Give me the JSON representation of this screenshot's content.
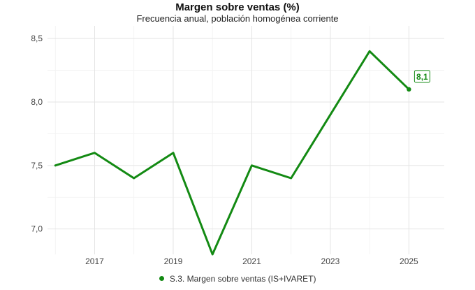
{
  "chart_data": {
    "type": "line",
    "title": "Margen sobre ventas (%)",
    "subtitle": "Frecuencia anual, población homogénea corriente",
    "xlabel": "",
    "ylabel": "",
    "x": [
      2016,
      2017,
      2018,
      2019,
      2020,
      2021,
      2022,
      2023,
      2024,
      2025
    ],
    "x_tick_labels": [
      "2017",
      "2019",
      "2021",
      "2023",
      "2025"
    ],
    "y_ticks": [
      7.0,
      7.5,
      8.0,
      8.5
    ],
    "y_tick_labels": [
      "7,0",
      "7,5",
      "8,0",
      "8,5"
    ],
    "ylim": [
      6.8,
      8.6
    ],
    "xlim": [
      2015.8,
      2025.9
    ],
    "grid": true,
    "legend_position": "bottom",
    "series": [
      {
        "name": "S.3. Margen sobre ventas (IS+IVARET)",
        "color": "#138a13",
        "values": [
          7.5,
          7.6,
          7.4,
          7.6,
          6.8,
          7.5,
          7.4,
          7.9,
          8.4,
          8.1
        ]
      }
    ],
    "annotations": [
      {
        "x": 2025,
        "y": 8.1,
        "text": "8,1"
      }
    ]
  }
}
